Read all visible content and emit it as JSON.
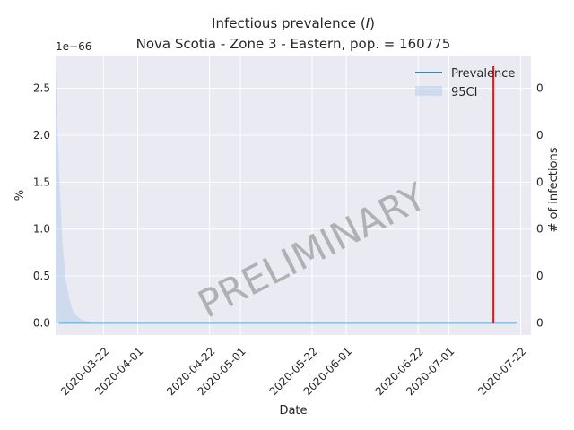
{
  "chart_data": {
    "type": "line",
    "title_line1": "Infectious prevalence (",
    "title_var": "I",
    "title_line1_end": ")",
    "title_line2": "Nova Scotia - Zone 3 - Eastern, pop. = 160775",
    "xlabel": "Date",
    "ylabel": "%",
    "ylabel_right": "# of infections",
    "offset_label": "1e−66",
    "watermark": "PRELIMINARY",
    "x_range": [
      "2020-03-08",
      "2020-07-25"
    ],
    "ylim": [
      -0.13,
      2.85
    ],
    "y_ticks": [
      {
        "value": 0.0,
        "label": "0.0"
      },
      {
        "value": 0.5,
        "label": "0.5"
      },
      {
        "value": 1.0,
        "label": "1.0"
      },
      {
        "value": 1.5,
        "label": "1.5"
      },
      {
        "value": 2.0,
        "label": "2.0"
      },
      {
        "value": 2.5,
        "label": "2.5"
      }
    ],
    "y_ticks_right": [
      {
        "value": 0.0,
        "label": "0"
      },
      {
        "value": 0.5,
        "label": "0"
      },
      {
        "value": 1.0,
        "label": "0"
      },
      {
        "value": 1.5,
        "label": "0"
      },
      {
        "value": 2.0,
        "label": "0"
      },
      {
        "value": 2.5,
        "label": "0"
      }
    ],
    "x_ticks": [
      {
        "date": "2020-03-22",
        "label": "2020-03-22"
      },
      {
        "date": "2020-04-01",
        "label": "2020-04-01"
      },
      {
        "date": "2020-04-22",
        "label": "2020-04-22"
      },
      {
        "date": "2020-05-01",
        "label": "2020-05-01"
      },
      {
        "date": "2020-05-22",
        "label": "2020-05-22"
      },
      {
        "date": "2020-06-01",
        "label": "2020-06-01"
      },
      {
        "date": "2020-06-22",
        "label": "2020-06-22"
      },
      {
        "date": "2020-07-01",
        "label": "2020-07-01"
      },
      {
        "date": "2020-07-22",
        "label": "2020-07-22"
      }
    ],
    "series": [
      {
        "name": "Prevalence",
        "color": "#1f77b4",
        "x": [
          "2020-03-09",
          "2020-07-21"
        ],
        "y": [
          0.0,
          0.0
        ]
      }
    ],
    "band": {
      "name": "95CI",
      "color": "#aec7e8",
      "x": [
        "2020-03-08",
        "2020-03-09",
        "2020-03-10",
        "2020-03-11",
        "2020-03-12",
        "2020-03-13",
        "2020-03-14",
        "2020-03-15",
        "2020-03-16",
        "2020-03-17",
        "2020-03-18",
        "2020-03-19",
        "2020-03-20"
      ],
      "upper": [
        2.75,
        1.6,
        0.85,
        0.45,
        0.25,
        0.14,
        0.08,
        0.05,
        0.03,
        0.02,
        0.01,
        0.005,
        0.0
      ],
      "lower": [
        0,
        0,
        0,
        0,
        0,
        0,
        0,
        0,
        0,
        0,
        0,
        0,
        0
      ]
    },
    "vline": {
      "date": "2020-07-14",
      "color": "#ff0000"
    },
    "legend_position": "top-right",
    "grid": true,
    "colors": {
      "axes_bg": "#eaeaf2",
      "grid": "#ffffff"
    }
  }
}
